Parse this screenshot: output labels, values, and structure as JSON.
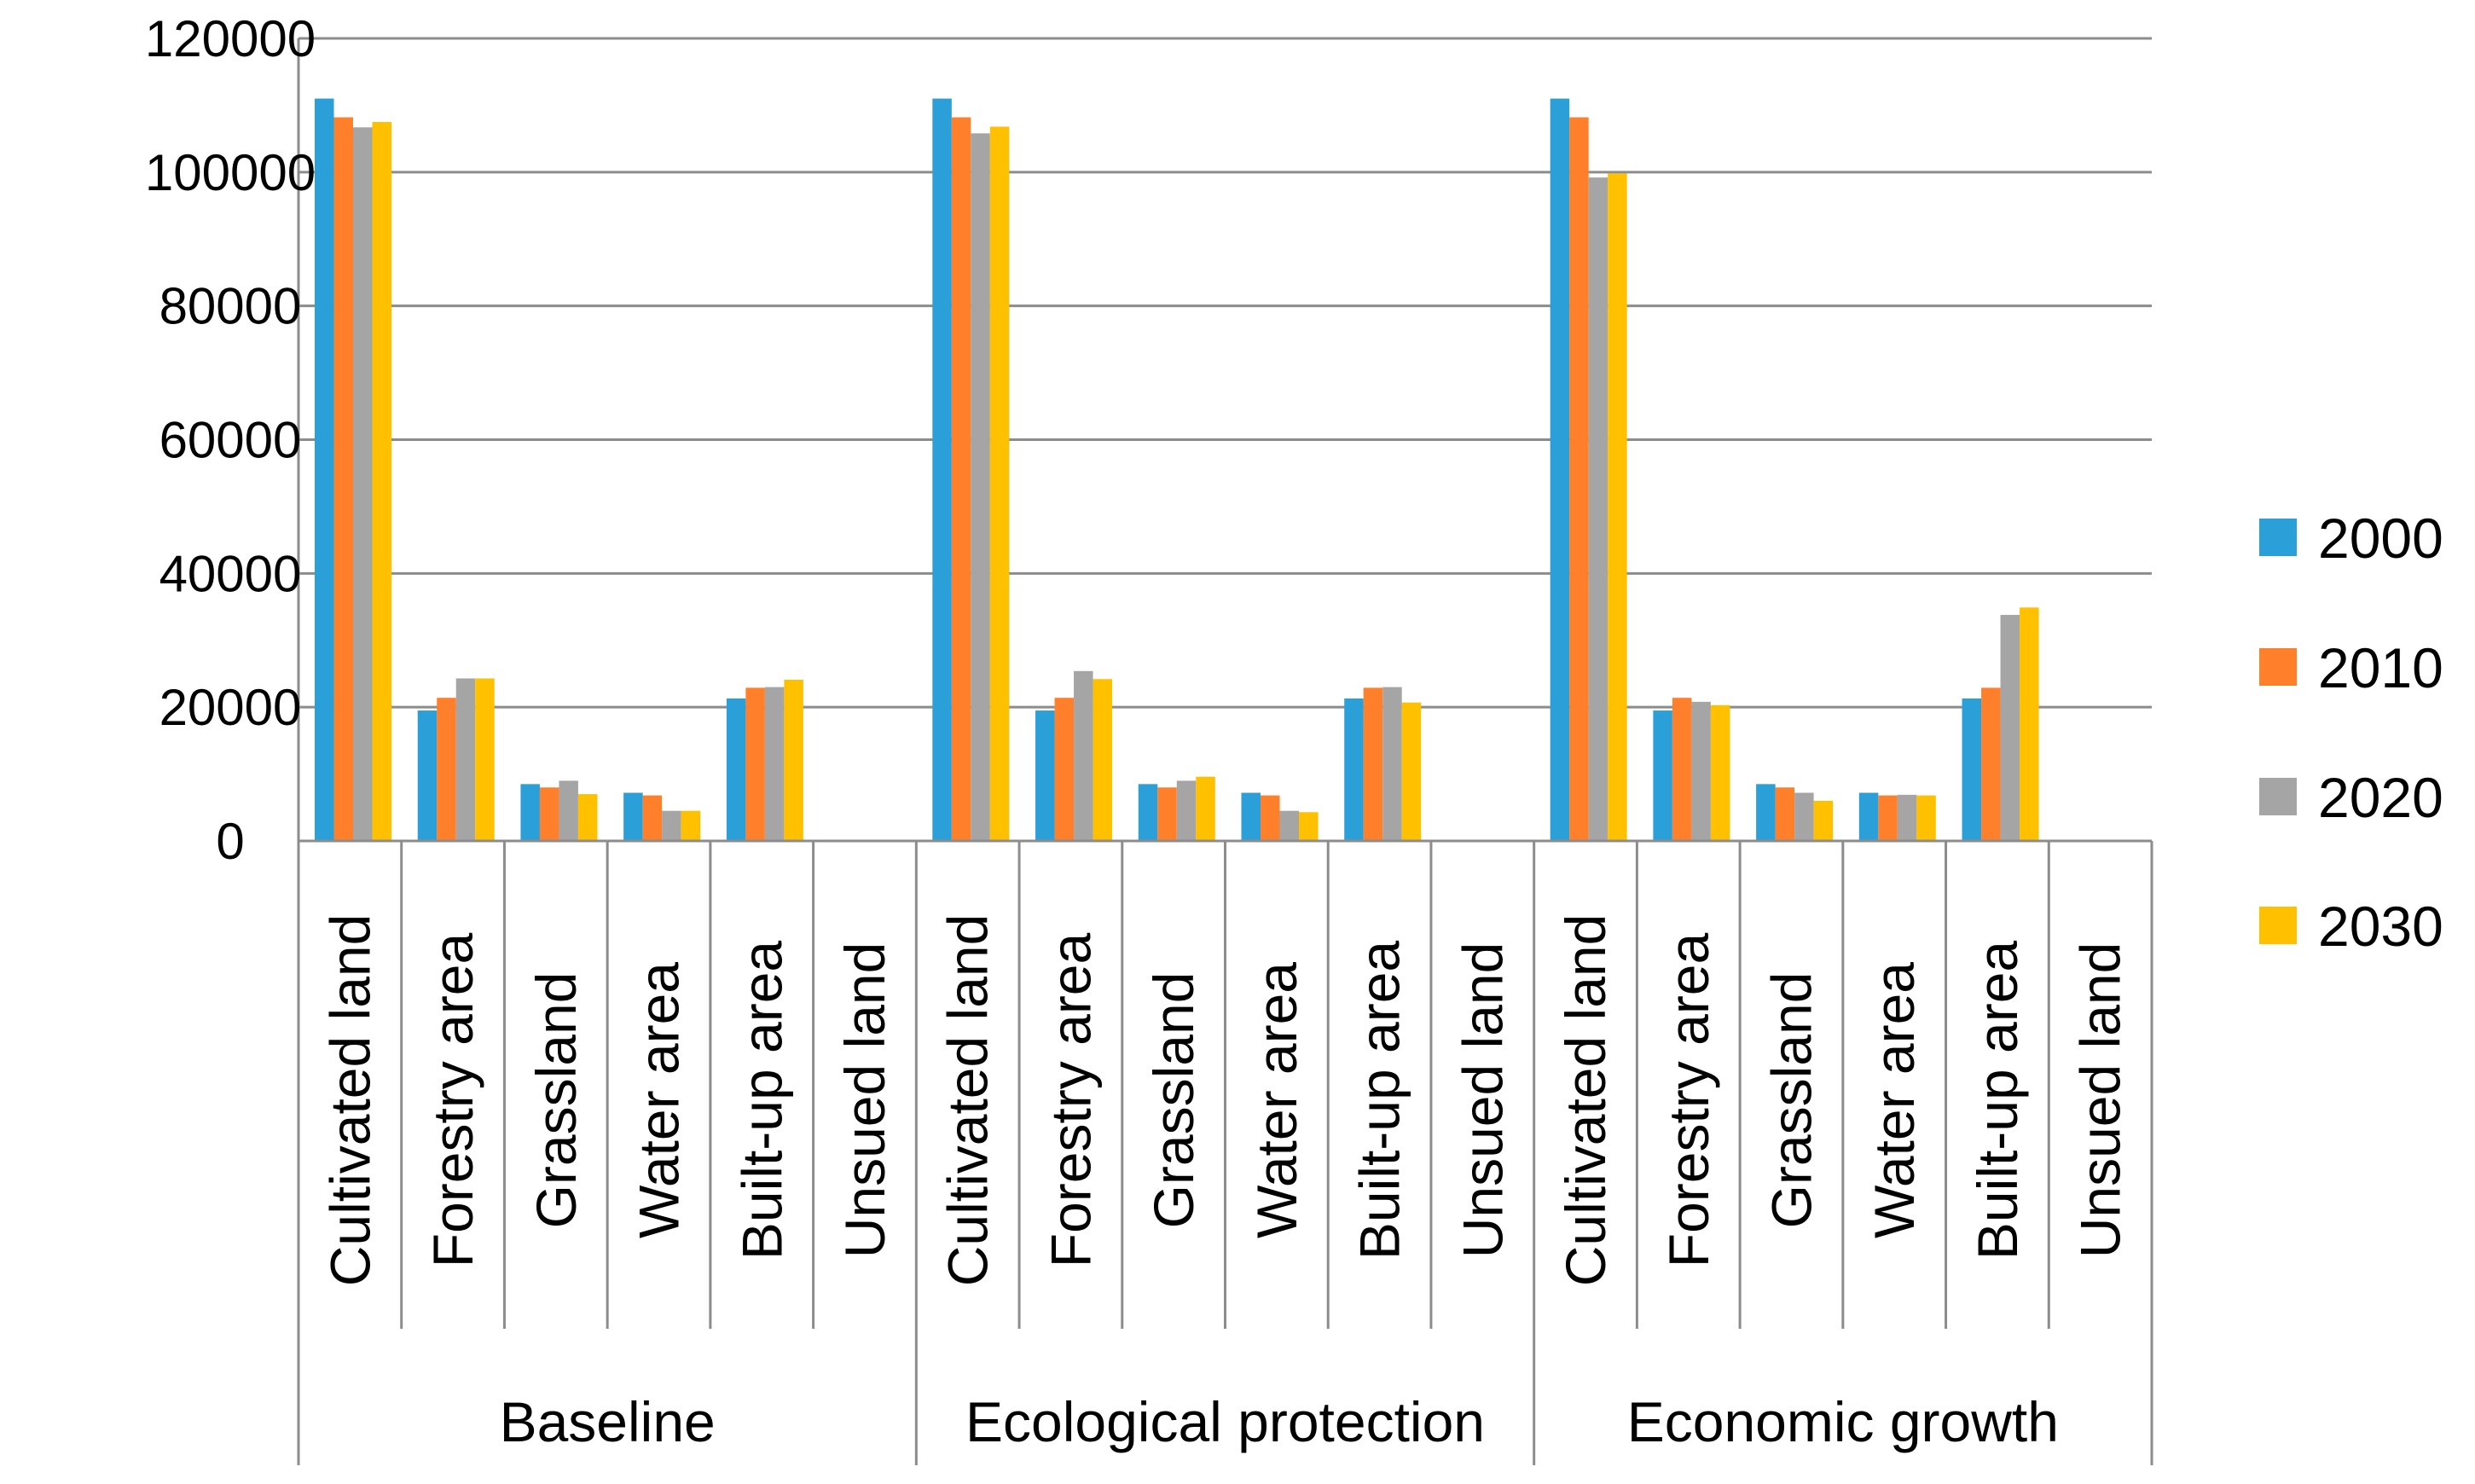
{
  "chart_data": {
    "type": "bar",
    "title": "",
    "xlabel": "",
    "ylabel": "",
    "ylim": [
      0,
      120000
    ],
    "yticks": [
      0,
      20000,
      40000,
      60000,
      80000,
      100000,
      120000
    ],
    "ytick_labels": [
      "0",
      "20000",
      "40000",
      "60000",
      "80000",
      "100000",
      "120000"
    ],
    "grid": true,
    "legend_position": "right",
    "colors": [
      "#2a9fd8",
      "#ff7f2a",
      "#a5a5a5",
      "#ffc000"
    ],
    "groups": [
      {
        "name": "Baseline",
        "categories": [
          "Cultivated land",
          "Forestry area",
          "Grassland",
          "Water area",
          "Built-up area",
          "Unsued land"
        ],
        "series": [
          {
            "name": "2000",
            "values": [
              111000,
              19500,
              8500,
              7200,
              21300,
              0
            ]
          },
          {
            "name": "2010",
            "values": [
              108200,
              21400,
              8000,
              6800,
              22900,
              0
            ]
          },
          {
            "name": "2020",
            "values": [
              106700,
              24300,
              9000,
              4500,
              23000,
              0
            ]
          },
          {
            "name": "2030",
            "values": [
              107500,
              24300,
              7000,
              4500,
              24100,
              0
            ]
          }
        ]
      },
      {
        "name": "Ecological protection",
        "categories": [
          "Cultivated land",
          "Forestry area",
          "Grassland",
          "Water area",
          "Built-up area",
          "Unsued land"
        ],
        "series": [
          {
            "name": "2000",
            "values": [
              111000,
              19500,
              8500,
              7200,
              21300,
              0
            ]
          },
          {
            "name": "2010",
            "values": [
              108200,
              21400,
              8000,
              6800,
              22900,
              0
            ]
          },
          {
            "name": "2020",
            "values": [
              105800,
              25400,
              9000,
              4500,
              23000,
              0
            ]
          },
          {
            "name": "2030",
            "values": [
              106800,
              24200,
              9600,
              4300,
              20700,
              0
            ]
          }
        ]
      },
      {
        "name": "Economic growth",
        "categories": [
          "Cultivated land",
          "Forestry area",
          "Grassland",
          "Water area",
          "Built-up area",
          "Unsued land"
        ],
        "series": [
          {
            "name": "2000",
            "values": [
              111000,
              19500,
              8500,
              7200,
              21300,
              0
            ]
          },
          {
            "name": "2010",
            "values": [
              108200,
              21400,
              8000,
              6800,
              22900,
              0
            ]
          },
          {
            "name": "2020",
            "values": [
              99200,
              20800,
              7200,
              6900,
              33800,
              0
            ]
          },
          {
            "name": "2030",
            "values": [
              99800,
              20300,
              6000,
              6800,
              34900,
              0
            ]
          }
        ]
      }
    ],
    "legend": [
      "2000",
      "2010",
      "2020",
      "2030"
    ]
  }
}
